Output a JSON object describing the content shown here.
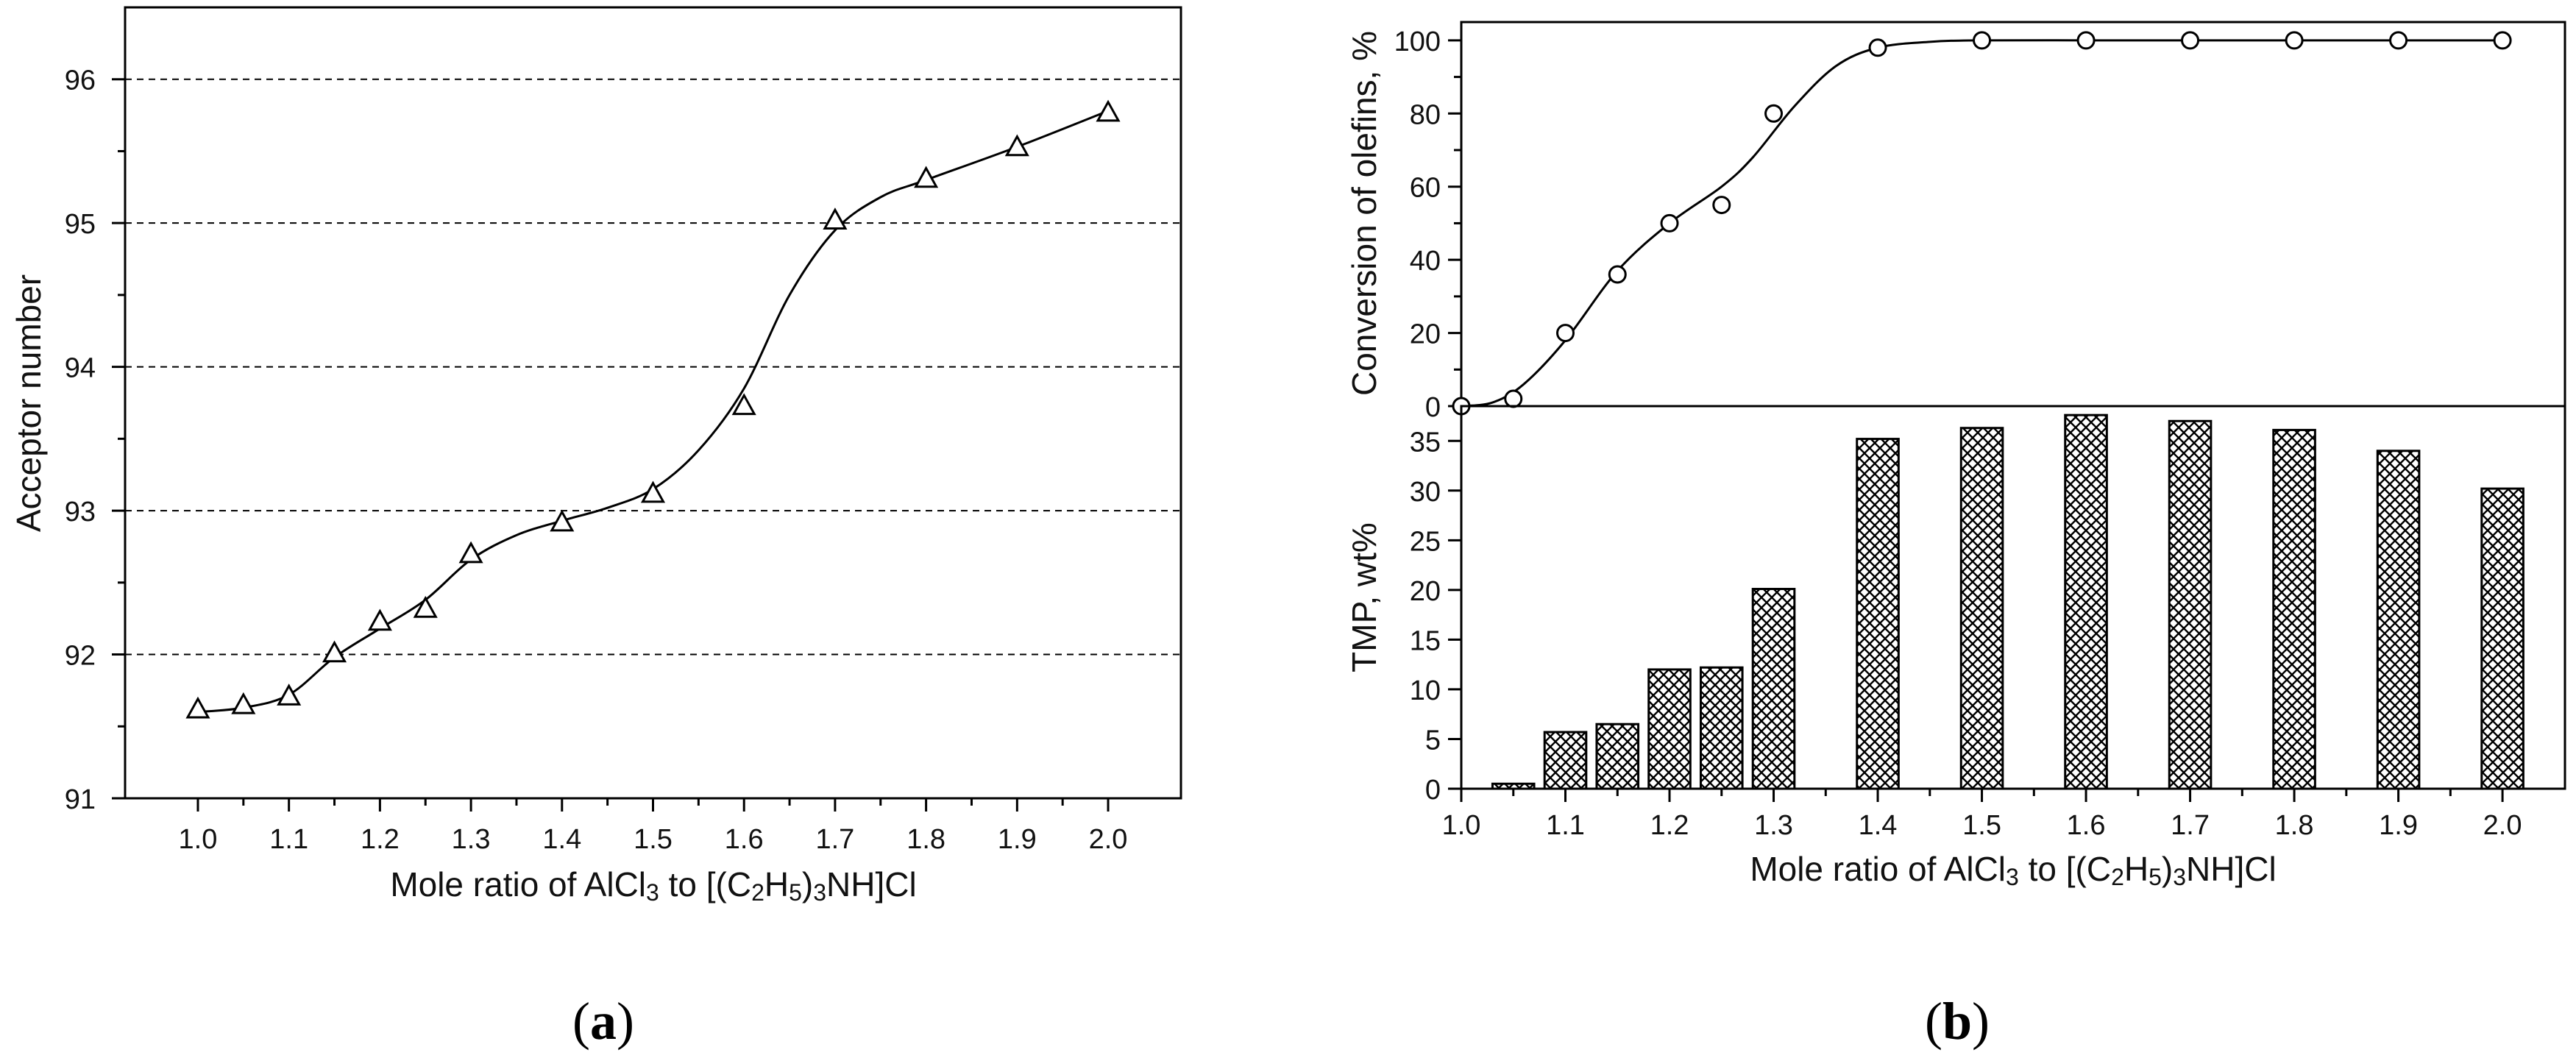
{
  "chart_data": [
    {
      "id": "a",
      "type": "line",
      "panel_label": "(a)",
      "panel_letter": "a",
      "marker": "triangle",
      "xlabel": {
        "prefix": "Mole ratio of AlCl",
        "sub1": "3",
        "mid": " to [(C",
        "sub2": "2",
        "mid2": "H",
        "sub3": "5",
        "mid3": ")",
        "sub4": "3",
        "suffix": "NH]Cl"
      },
      "ylabel": "Acceptor number",
      "xlim": [
        0.92,
        2.08
      ],
      "ylim": [
        91,
        96.5
      ],
      "xticks": [
        "1.0",
        "1.1",
        "1.2",
        "1.3",
        "1.4",
        "1.5",
        "1.6",
        "1.7",
        "1.8",
        "1.9",
        "2.0"
      ],
      "yticks": [
        "91",
        "92",
        "93",
        "94",
        "95",
        "96"
      ],
      "gridlines_y": [
        92,
        93,
        94,
        95,
        96
      ],
      "x": [
        1.0,
        1.05,
        1.1,
        1.15,
        1.2,
        1.25,
        1.3,
        1.4,
        1.5,
        1.6,
        1.7,
        1.8,
        1.9,
        2.0
      ],
      "y": [
        91.62,
        91.65,
        91.71,
        92.01,
        92.23,
        92.32,
        92.7,
        92.92,
        93.12,
        93.73,
        95.02,
        95.31,
        95.53,
        95.77
      ],
      "curve_x": [
        1.0,
        1.05,
        1.1,
        1.15,
        1.2,
        1.25,
        1.3,
        1.35,
        1.4,
        1.45,
        1.5,
        1.55,
        1.6,
        1.65,
        1.7,
        1.75,
        1.8,
        1.9,
        2.0
      ],
      "curve_y": [
        91.6,
        91.63,
        91.72,
        91.98,
        92.18,
        92.38,
        92.66,
        92.83,
        92.93,
        93.02,
        93.15,
        93.42,
        93.85,
        94.5,
        94.95,
        95.18,
        95.3,
        95.53,
        95.78
      ]
    },
    {
      "id": "b-top",
      "type": "line",
      "panel_label": "(b)",
      "panel_letter": "b",
      "marker": "circle",
      "ylabel": "Conversion of olefins, %",
      "xlim": [
        1.0,
        2.06
      ],
      "ylim": [
        0,
        105
      ],
      "yticks": [
        "0",
        "20",
        "40",
        "60",
        "80",
        "100"
      ],
      "x": [
        1.0,
        1.05,
        1.1,
        1.15,
        1.2,
        1.25,
        1.3,
        1.4,
        1.5,
        1.6,
        1.7,
        1.8,
        1.9,
        2.0
      ],
      "y": [
        0,
        2,
        20,
        36,
        50,
        55,
        80,
        98,
        100,
        100,
        100,
        100,
        100,
        100
      ],
      "curve_x": [
        1.0,
        1.03,
        1.06,
        1.1,
        1.15,
        1.2,
        1.25,
        1.28,
        1.32,
        1.36,
        1.4,
        1.45,
        1.5,
        1.6,
        1.7,
        1.8,
        1.9,
        2.0
      ],
      "curve_y": [
        0,
        1,
        6,
        18,
        37,
        50,
        60,
        68,
        82,
        93,
        98,
        99.6,
        100,
        100,
        100,
        100,
        100,
        100
      ]
    },
    {
      "id": "b-bottom",
      "type": "bar",
      "xlabel": {
        "prefix": "Mole ratio of AlCl",
        "sub1": "3",
        "mid": " to [(C",
        "sub2": "2",
        "mid2": "H",
        "sub3": "5",
        "mid3": ")",
        "sub4": "3",
        "suffix": "NH]Cl"
      },
      "ylabel": "TMP, wt%",
      "xlim": [
        1.0,
        2.06
      ],
      "ylim": [
        0,
        38.5
      ],
      "xticks": [
        "1.0",
        "1.1",
        "1.2",
        "1.3",
        "1.4",
        "1.5",
        "1.6",
        "1.7",
        "1.8",
        "1.9",
        "2.0"
      ],
      "yticks": [
        "0",
        "5",
        "10",
        "15",
        "20",
        "25",
        "30",
        "35"
      ],
      "bar_width": 0.04,
      "x": [
        1.05,
        1.1,
        1.15,
        1.2,
        1.25,
        1.3,
        1.4,
        1.5,
        1.6,
        1.7,
        1.8,
        1.9,
        2.0
      ],
      "values": [
        0.5,
        5.7,
        6.5,
        12.0,
        12.2,
        20.1,
        35.2,
        36.3,
        37.6,
        37.0,
        36.1,
        34.0,
        30.2
      ]
    }
  ]
}
